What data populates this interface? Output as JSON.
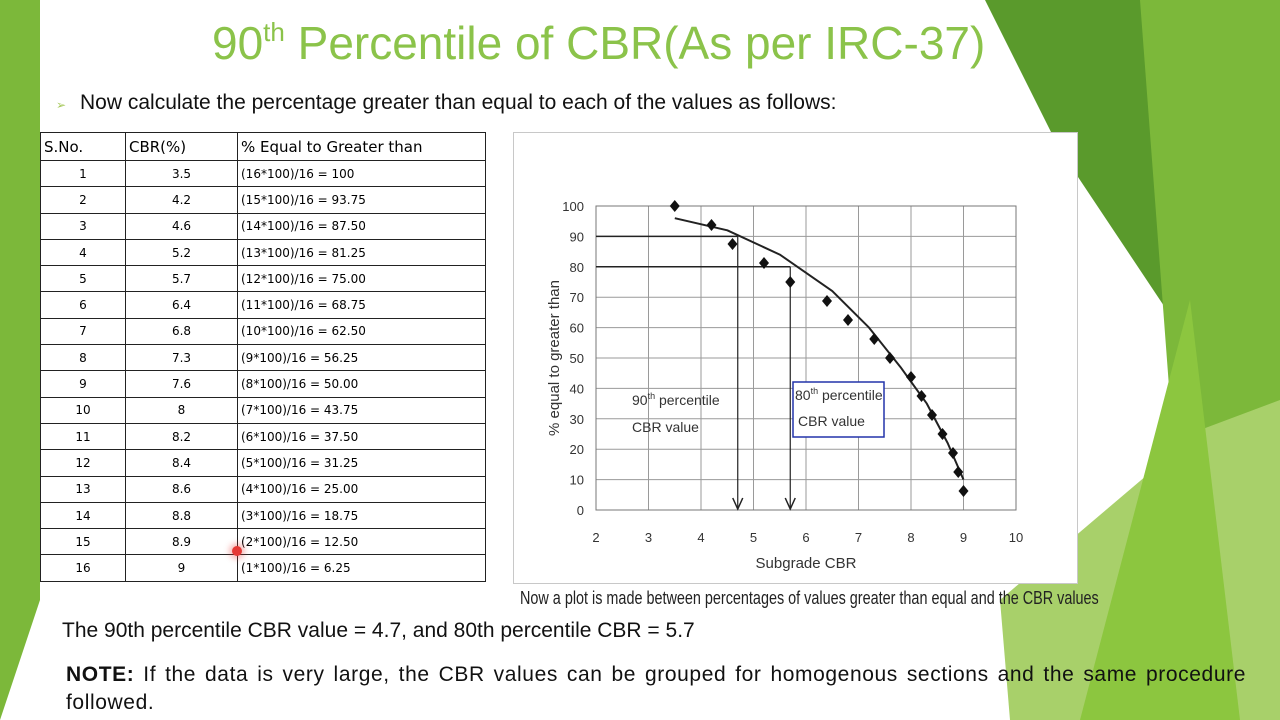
{
  "slide": {
    "title_prefix": "90",
    "title_sup": "th",
    "title_rest": " Percentile of CBR(As per IRC-37)",
    "bullet_text": "Now calculate the percentage greater than equal to each of the values as follows:",
    "result_text": "The 90th percentile CBR value = 4.7, and 80th percentile CBR = 5.7",
    "note_label": "NOTE:",
    "note_text": " If the data is very large, the CBR values can be grouped for homogenous sections and the same procedure followed.",
    "plot_caption": "Now a plot is made between percentages of values greater than equal and the CBR values",
    "colors": {
      "title": "#8bc34a",
      "green_dark": "#5a9a2c",
      "green_mid": "#7cb83a",
      "green_light": "#a8d06a"
    }
  },
  "table": {
    "headers": [
      "S.No.",
      "CBR(%)",
      "% Equal to Greater than"
    ],
    "rows": [
      [
        "1",
        "3.5",
        "(16*100)/16 = 100"
      ],
      [
        "2",
        "4.2",
        "(15*100)/16 = 93.75"
      ],
      [
        "3",
        "4.6",
        "(14*100)/16 = 87.50"
      ],
      [
        "4",
        "5.2",
        "(13*100)/16 = 81.25"
      ],
      [
        "5",
        "5.7",
        "(12*100)/16 = 75.00"
      ],
      [
        "6",
        "6.4",
        "(11*100)/16 = 68.75"
      ],
      [
        "7",
        "6.8",
        "(10*100)/16 = 62.50"
      ],
      [
        "8",
        "7.3",
        "(9*100)/16 = 56.25"
      ],
      [
        "9",
        "7.6",
        "(8*100)/16 = 50.00"
      ],
      [
        "10",
        "8",
        "(7*100)/16 = 43.75"
      ],
      [
        "11",
        "8.2",
        "(6*100)/16 = 37.50"
      ],
      [
        "12",
        "8.4",
        "(5*100)/16 = 31.25"
      ],
      [
        "13",
        "8.6",
        "(4*100)/16 = 25.00"
      ],
      [
        "14",
        "8.8",
        "(3*100)/16 = 18.75"
      ],
      [
        "15",
        "8.9",
        "(2*100)/16 = 12.50"
      ],
      [
        "16",
        "9",
        "(1*100)/16 = 6.25"
      ]
    ]
  },
  "chart_data": {
    "type": "scatter",
    "xlabel": "Subgrade CBR",
    "ylabel": "% equal to greater than",
    "xlim": [
      2,
      10
    ],
    "ylim": [
      0,
      100
    ],
    "xticks": [
      2,
      3,
      4,
      5,
      6,
      7,
      8,
      9,
      10
    ],
    "yticks": [
      0,
      10,
      20,
      30,
      40,
      50,
      60,
      70,
      80,
      90,
      100
    ],
    "grid": true,
    "points": [
      [
        3.5,
        100
      ],
      [
        4.2,
        93.75
      ],
      [
        4.6,
        87.5
      ],
      [
        5.2,
        81.25
      ],
      [
        5.7,
        75
      ],
      [
        6.4,
        68.75
      ],
      [
        6.8,
        62.5
      ],
      [
        7.3,
        56.25
      ],
      [
        7.6,
        50
      ],
      [
        8,
        43.75
      ],
      [
        8.2,
        37.5
      ],
      [
        8.4,
        31.25
      ],
      [
        8.6,
        25
      ],
      [
        8.8,
        18.75
      ],
      [
        8.9,
        12.5
      ],
      [
        9,
        6.25
      ]
    ],
    "curve": [
      [
        3.5,
        96
      ],
      [
        4.5,
        92
      ],
      [
        5.5,
        84
      ],
      [
        6.5,
        72
      ],
      [
        7.2,
        60
      ],
      [
        7.8,
        47
      ],
      [
        8.3,
        35
      ],
      [
        8.7,
        22
      ],
      [
        9.0,
        10
      ]
    ],
    "percentile_90": {
      "x": 4.7,
      "y": 90,
      "label_main": "90",
      "label_sup": "th",
      "label_rest": " percentile",
      "label_line2": "CBR value"
    },
    "percentile_80": {
      "x": 5.7,
      "y": 80,
      "label_main": "80",
      "label_sup": "th",
      "label_rest": " percentile",
      "label_line2": "CBR value"
    }
  }
}
